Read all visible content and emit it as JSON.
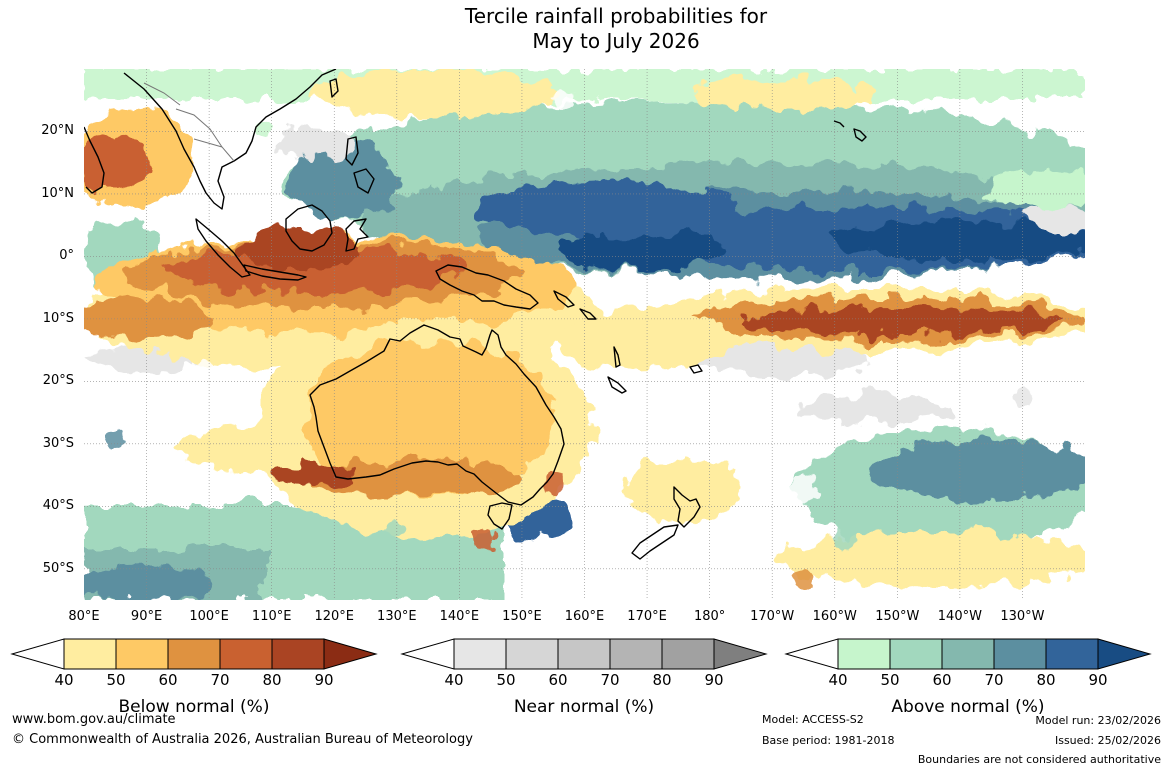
{
  "header": {
    "title_line1": "Tercile rainfall probabilities for",
    "title_line2": "May to July 2026"
  },
  "map": {
    "projection": "equirectangular",
    "lon_range": [
      80,
      240
    ],
    "lat_range": [
      -55,
      30
    ],
    "lat_labels": [
      "20°N",
      "10°N",
      "0°",
      "10°S",
      "20°S",
      "30°S",
      "40°S",
      "50°S"
    ],
    "lon_labels": [
      "80°E",
      "90°E",
      "100°E",
      "110°E",
      "120°E",
      "130°E",
      "140°E",
      "150°E",
      "160°E",
      "170°E",
      "180°",
      "170°W",
      "160°W",
      "150°W",
      "140°W",
      "130°W"
    ],
    "colors": {
      "below": [
        "#ffeda0",
        "#fec965",
        "#df9240",
        "#c96130",
        "#aa4423",
        "#8b2c14"
      ],
      "near": [
        "#e6e6e6",
        "#d1d1d1",
        "#bdbdbd",
        "#a8a8a8",
        "#8c8c8c"
      ],
      "above": [
        "#c6f5cc",
        "#a2d8be",
        "#84b8ae",
        "#5c8fa0",
        "#32649a",
        "#184c83"
      ]
    }
  },
  "legend": {
    "below": {
      "title": "Below normal (%)",
      "ticks": [
        "40",
        "50",
        "60",
        "70",
        "80",
        "90"
      ],
      "colors": [
        "#ffeda0",
        "#fec965",
        "#df9240",
        "#c96130",
        "#aa4423"
      ],
      "arrow_color": "#8b2c14"
    },
    "near": {
      "title": "Near normal (%)",
      "ticks": [
        "40",
        "50",
        "60",
        "70",
        "80",
        "90"
      ],
      "colors": [
        "#e6e6e6",
        "#d6d6d6",
        "#c6c6c6",
        "#b4b4b4",
        "#a1a1a1"
      ],
      "arrow_color": "#7f7f7f"
    },
    "above": {
      "title": "Above normal (%)",
      "ticks": [
        "40",
        "50",
        "60",
        "70",
        "80",
        "90"
      ],
      "colors": [
        "#c6f5cc",
        "#a2d8be",
        "#84b8ae",
        "#5c8fa0",
        "#32649a"
      ],
      "arrow_color": "#184c83"
    }
  },
  "footer": {
    "website": "www.bom.gov.au/climate",
    "copyright": "© Commonwealth of Australia 2026, Australian Bureau of Meteorology",
    "model": "Model: ACCESS-S2",
    "base_period": "Base period: 1981-2018",
    "model_run": "Model run: 23/02/2026",
    "issued": "Issued: 25/02/2026",
    "disclaimer": "Boundaries are not considered authoritative"
  }
}
